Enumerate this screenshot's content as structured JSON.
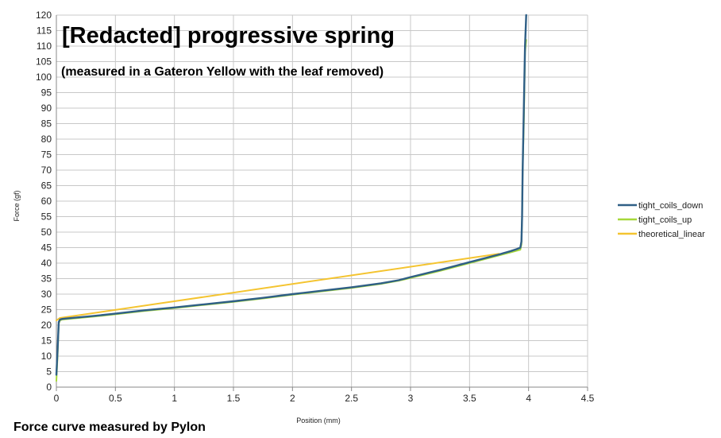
{
  "chart_data": {
    "type": "line",
    "title": "[Redacted] progressive spring",
    "subtitle": "(measured in a Gateron Yellow with the leaf removed)",
    "xlabel": "Position (mm)",
    "ylabel": "Force (gf)",
    "xlim": [
      0,
      4.5
    ],
    "ylim": [
      0,
      120
    ],
    "x_ticks": [
      "0",
      "0.5",
      "1",
      "1.5",
      "2",
      "2.5",
      "3",
      "3.5",
      "4",
      "4.5"
    ],
    "y_ticks": [
      "0",
      "5",
      "10",
      "15",
      "20",
      "25",
      "30",
      "35",
      "40",
      "45",
      "50",
      "55",
      "60",
      "65",
      "70",
      "75",
      "80",
      "85",
      "90",
      "95",
      "100",
      "105",
      "110",
      "115",
      "120"
    ],
    "grid": true,
    "legend_position": "right",
    "series": [
      {
        "name": "tight_coils_down",
        "color": "#2f5f86",
        "x": [
          0.0,
          0.01,
          0.02,
          0.03,
          0.05,
          0.1,
          0.3,
          0.5,
          0.75,
          1.0,
          1.25,
          1.5,
          1.75,
          2.0,
          2.25,
          2.5,
          2.75,
          2.9,
          3.0,
          3.25,
          3.5,
          3.75,
          3.85,
          3.9,
          3.93,
          3.94,
          3.945,
          3.95,
          3.96,
          3.97,
          3.98
        ],
        "y": [
          4.0,
          12.0,
          21.0,
          21.8,
          22.0,
          22.2,
          22.9,
          23.7,
          24.8,
          25.7,
          26.7,
          27.7,
          28.8,
          30.0,
          31.1,
          32.2,
          33.5,
          34.5,
          35.5,
          37.8,
          40.3,
          42.8,
          43.9,
          44.5,
          45.0,
          47.0,
          55.0,
          70.0,
          90.0,
          110.0,
          120.0
        ]
      },
      {
        "name": "tight_coils_up",
        "color": "#a6d83a",
        "x": [
          0.0,
          0.01,
          0.02,
          0.03,
          0.05,
          0.1,
          0.3,
          0.5,
          0.75,
          1.0,
          1.25,
          1.5,
          1.75,
          2.0,
          2.25,
          2.5,
          2.75,
          2.9,
          3.0,
          3.25,
          3.5,
          3.75,
          3.85,
          3.9,
          3.93,
          3.94,
          3.945,
          3.95,
          3.96,
          3.97,
          3.98
        ],
        "y": [
          2.0,
          10.0,
          20.5,
          21.5,
          21.8,
          22.0,
          22.7,
          23.5,
          24.6,
          25.5,
          26.5,
          27.5,
          28.6,
          29.8,
          30.9,
          32.0,
          33.3,
          34.3,
          35.2,
          37.5,
          40.0,
          42.5,
          43.5,
          44.0,
          44.3,
          46.0,
          55.0,
          70.0,
          85.0,
          108.0,
          112.0
        ]
      },
      {
        "name": "theoretical_linear",
        "color": "#f4c430",
        "x": [
          0.0,
          0.03,
          3.75
        ],
        "y": [
          21.5,
          22.3,
          43.0
        ]
      }
    ]
  },
  "footer": "Force curve measured by Pylon"
}
